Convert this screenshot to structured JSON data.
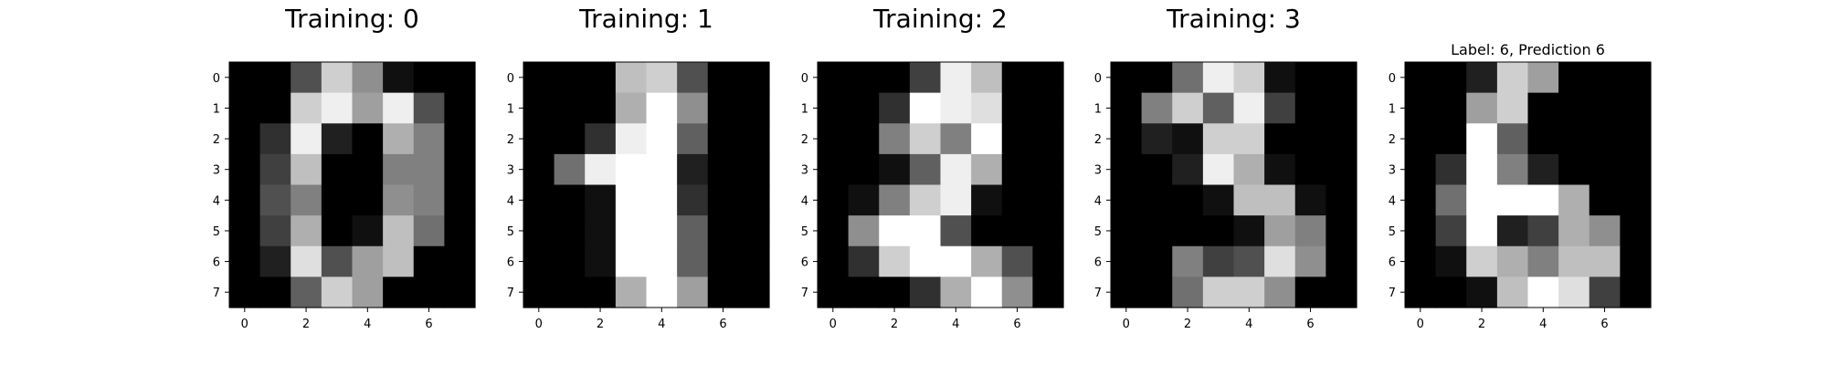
{
  "chart_data": [
    {
      "type": "heatmap",
      "title": "Training: 0",
      "colormap": "gray",
      "value_range": [
        0,
        16
      ],
      "x_ticks": [
        "0",
        "2",
        "4",
        "6"
      ],
      "y_ticks": [
        "0",
        "1",
        "2",
        "3",
        "4",
        "5",
        "6",
        "7"
      ],
      "values": [
        [
          0,
          0,
          5,
          13,
          9,
          1,
          0,
          0
        ],
        [
          0,
          0,
          13,
          15,
          10,
          15,
          5,
          0
        ],
        [
          0,
          3,
          15,
          2,
          0,
          11,
          8,
          0
        ],
        [
          0,
          4,
          12,
          0,
          0,
          8,
          8,
          0
        ],
        [
          0,
          5,
          8,
          0,
          0,
          9,
          8,
          0
        ],
        [
          0,
          4,
          11,
          0,
          1,
          12,
          7,
          0
        ],
        [
          0,
          2,
          14,
          5,
          10,
          12,
          0,
          0
        ],
        [
          0,
          0,
          6,
          13,
          10,
          0,
          0,
          0
        ]
      ]
    },
    {
      "type": "heatmap",
      "title": "Training: 1",
      "colormap": "gray",
      "value_range": [
        0,
        16
      ],
      "x_ticks": [
        "0",
        "2",
        "4",
        "6"
      ],
      "y_ticks": [
        "0",
        "1",
        "2",
        "3",
        "4",
        "5",
        "6",
        "7"
      ],
      "values": [
        [
          0,
          0,
          0,
          12,
          13,
          5,
          0,
          0
        ],
        [
          0,
          0,
          0,
          11,
          16,
          9,
          0,
          0
        ],
        [
          0,
          0,
          3,
          15,
          16,
          6,
          0,
          0
        ],
        [
          0,
          7,
          15,
          16,
          16,
          2,
          0,
          0
        ],
        [
          0,
          0,
          1,
          16,
          16,
          3,
          0,
          0
        ],
        [
          0,
          0,
          1,
          16,
          16,
          6,
          0,
          0
        ],
        [
          0,
          0,
          1,
          16,
          16,
          6,
          0,
          0
        ],
        [
          0,
          0,
          0,
          11,
          16,
          10,
          0,
          0
        ]
      ]
    },
    {
      "type": "heatmap",
      "title": "Training: 2",
      "colormap": "gray",
      "value_range": [
        0,
        16
      ],
      "x_ticks": [
        "0",
        "2",
        "4",
        "6"
      ],
      "y_ticks": [
        "0",
        "1",
        "2",
        "3",
        "4",
        "5",
        "6",
        "7"
      ],
      "values": [
        [
          0,
          0,
          0,
          4,
          15,
          12,
          0,
          0
        ],
        [
          0,
          0,
          3,
          16,
          15,
          14,
          0,
          0
        ],
        [
          0,
          0,
          8,
          13,
          8,
          16,
          0,
          0
        ],
        [
          0,
          0,
          1,
          6,
          15,
          11,
          0,
          0
        ],
        [
          0,
          1,
          8,
          13,
          15,
          1,
          0,
          0
        ],
        [
          0,
          9,
          16,
          16,
          5,
          0,
          0,
          0
        ],
        [
          0,
          3,
          13,
          16,
          16,
          11,
          5,
          0
        ],
        [
          0,
          0,
          0,
          3,
          11,
          16,
          9,
          0
        ]
      ]
    },
    {
      "type": "heatmap",
      "title": "Training: 3",
      "colormap": "gray",
      "value_range": [
        0,
        16
      ],
      "x_ticks": [
        "0",
        "2",
        "4",
        "6"
      ],
      "y_ticks": [
        "0",
        "1",
        "2",
        "3",
        "4",
        "5",
        "6",
        "7"
      ],
      "values": [
        [
          0,
          0,
          7,
          15,
          13,
          1,
          0,
          0
        ],
        [
          0,
          8,
          13,
          6,
          15,
          4,
          0,
          0
        ],
        [
          0,
          2,
          1,
          13,
          13,
          0,
          0,
          0
        ],
        [
          0,
          0,
          2,
          15,
          11,
          1,
          0,
          0
        ],
        [
          0,
          0,
          0,
          1,
          12,
          12,
          1,
          0
        ],
        [
          0,
          0,
          0,
          0,
          1,
          10,
          8,
          0
        ],
        [
          0,
          0,
          8,
          4,
          5,
          14,
          9,
          0
        ],
        [
          0,
          0,
          7,
          13,
          13,
          9,
          0,
          0
        ]
      ]
    },
    {
      "type": "heatmap",
      "title": "Label: 6, Prediction 6",
      "colormap": "gray",
      "value_range": [
        0,
        16
      ],
      "x_ticks": [
        "0",
        "2",
        "4",
        "6"
      ],
      "y_ticks": [
        "0",
        "1",
        "2",
        "3",
        "4",
        "5",
        "6",
        "7"
      ],
      "values": [
        [
          0,
          0,
          2,
          13,
          10,
          0,
          0,
          0
        ],
        [
          0,
          0,
          10,
          13,
          0,
          0,
          0,
          0
        ],
        [
          0,
          0,
          16,
          6,
          0,
          0,
          0,
          0
        ],
        [
          0,
          3,
          16,
          8,
          2,
          0,
          0,
          0
        ],
        [
          0,
          7,
          16,
          16,
          16,
          11,
          0,
          0
        ],
        [
          0,
          4,
          16,
          2,
          4,
          11,
          9,
          0
        ],
        [
          0,
          1,
          13,
          11,
          8,
          12,
          12,
          0
        ],
        [
          0,
          0,
          1,
          12,
          16,
          14,
          4,
          0
        ]
      ]
    }
  ]
}
